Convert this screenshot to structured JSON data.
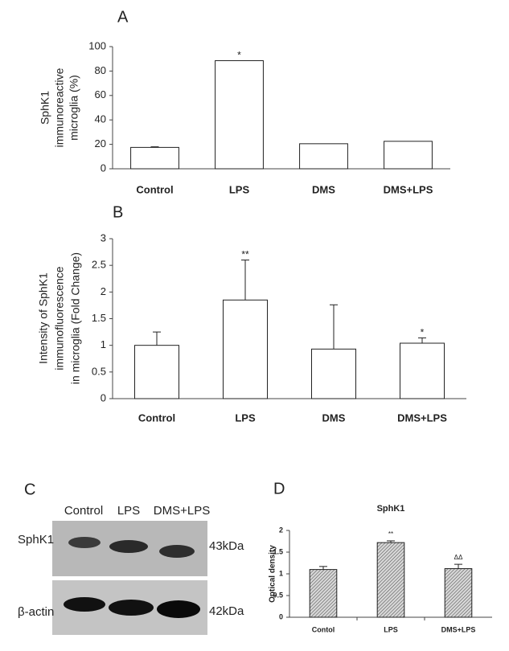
{
  "chart_data": [
    {
      "type": "bar",
      "panel": "A",
      "ylabel": [
        "SphK1",
        "immunoreactive",
        "microglia (%)"
      ],
      "categories": [
        "Control",
        "LPS",
        "DMS",
        "DMS+LPS"
      ],
      "values": [
        17.5,
        88.5,
        20.5,
        22.5
      ],
      "errors": [
        0.5,
        null,
        null,
        null
      ],
      "markers": [
        null,
        "*",
        null,
        null
      ],
      "color": "#ffffff",
      "ylim": [
        0,
        100
      ],
      "yticks": [
        0,
        20,
        40,
        60,
        80,
        100
      ]
    },
    {
      "type": "bar",
      "panel": "B",
      "ylabel": [
        "Intensity of SphK1",
        "immunofluorescence",
        "in microglia (Fold Change)"
      ],
      "categories": [
        "Control",
        "LPS",
        "DMS",
        "DMS+LPS"
      ],
      "values": [
        1.0,
        1.85,
        0.93,
        1.04
      ],
      "errors": [
        0.25,
        0.75,
        0.83,
        0.1
      ],
      "markers": [
        null,
        "**",
        null,
        "*"
      ],
      "color": "#ffffff",
      "ylim": [
        0,
        3
      ],
      "yticks": [
        0,
        0.5,
        1,
        1.5,
        2,
        2.5,
        3
      ]
    },
    {
      "type": "bar",
      "panel": "D",
      "title": "SphK1",
      "ylabel": [
        "Optical density"
      ],
      "categories": [
        "Contol",
        "LPS",
        "DMS+LPS"
      ],
      "values": [
        1.1,
        1.72,
        1.12
      ],
      "errors": [
        0.07,
        0.04,
        0.1
      ],
      "markers": [
        null,
        "**",
        "ΔΔ"
      ],
      "color": "#bdbdbd",
      "hatch": true,
      "ylim": [
        0,
        2
      ],
      "yticks": [
        0,
        0.5,
        1,
        1.5,
        2
      ]
    }
  ],
  "blot": {
    "panel": "C",
    "lanes": [
      "Control",
      "LPS",
      "DMS+LPS"
    ],
    "rows": [
      {
        "label": "SphK1",
        "size": "43kDa"
      },
      {
        "label": "β-actin",
        "size": "42kDa"
      }
    ]
  }
}
